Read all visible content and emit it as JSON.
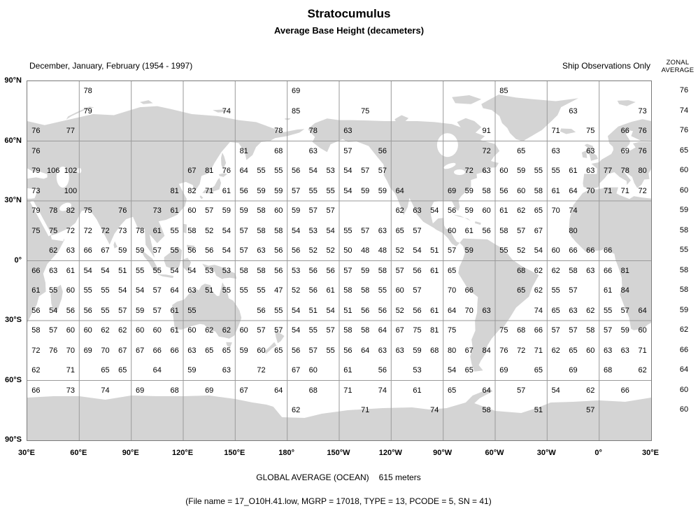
{
  "title": "Stratocumulus",
  "subtitle": "Average Base Height (decameters)",
  "header": {
    "season": "December, January, February (1954 - 1997)",
    "obs": "Ship Observations Only",
    "zonal_line1": "ZONAL",
    "zonal_line2": "AVERAGE"
  },
  "footer": {
    "global_label": "GLOBAL AVERAGE (OCEAN)",
    "global_value": "615 meters",
    "file_info": "(File name = 17_O10H.41.low, MGRP = 17018, TYPE = 13, PCODE = 5, SN = 41)"
  },
  "chart_data": {
    "type": "heatmap",
    "projection": "equirectangular",
    "title": "Stratocumulus",
    "subtitle": "Average Base Height (decameters)",
    "units": "decameters",
    "lon_start_deg_east": 30,
    "cell_size_deg": 10,
    "lat_labels": [
      "90°N",
      "60°N",
      "30°N",
      "0°",
      "30°S",
      "60°S",
      "90°S"
    ],
    "lon_labels": [
      "30°E",
      "60°E",
      "90°E",
      "120°E",
      "150°E",
      "180°",
      "150°W",
      "120°W",
      "90°W",
      "60°W",
      "30°W",
      "0°",
      "30°E"
    ],
    "rows": [
      {
        "lat_band": "90N-80N",
        "zonal_average": 76,
        "cells": {
          "3": 78,
          "15": 69,
          "27": 85
        }
      },
      {
        "lat_band": "80N-70N",
        "zonal_average": 74,
        "cells": {
          "3": 79,
          "11": 74,
          "15": 85,
          "19": 75,
          "31": 63,
          "35": 73
        }
      },
      {
        "lat_band": "70N-60N",
        "zonal_average": 76,
        "cells": {
          "0": 76,
          "2": 77,
          "14": 78,
          "16": 78,
          "18": 63,
          "26": 91,
          "30": 71,
          "32": 75,
          "34": 66,
          "35": 76
        }
      },
      {
        "lat_band": "60N-50N",
        "zonal_average": 65,
        "cells": {
          "0": 76,
          "12": 81,
          "14": 68,
          "16": 63,
          "18": 57,
          "20": 56,
          "26": 72,
          "28": 65,
          "30": 63,
          "32": 63,
          "34": 69,
          "35": 76
        }
      },
      {
        "lat_band": "50N-40N",
        "zonal_average": 60,
        "cells": {
          "0": 79,
          "1": 106,
          "2": 102,
          "9": 67,
          "10": 81,
          "11": 76,
          "12": 64,
          "13": 55,
          "14": 55,
          "15": 56,
          "16": 54,
          "17": 53,
          "18": 54,
          "19": 57,
          "20": 57,
          "25": 72,
          "26": 63,
          "27": 60,
          "28": 59,
          "29": 55,
          "30": 55,
          "31": 61,
          "32": 63,
          "33": 77,
          "34": 78,
          "35": 80
        }
      },
      {
        "lat_band": "40N-30N",
        "zonal_average": 60,
        "cells": {
          "0": 73,
          "2": 100,
          "8": 81,
          "9": 82,
          "10": 71,
          "11": 61,
          "12": 56,
          "13": 59,
          "14": 59,
          "15": 57,
          "16": 55,
          "17": 55,
          "18": 54,
          "19": 59,
          "20": 59,
          "21": 64,
          "24": 69,
          "25": 59,
          "26": 58,
          "27": 56,
          "28": 60,
          "29": 58,
          "30": 61,
          "31": 64,
          "32": 70,
          "33": 71,
          "34": 71,
          "35": 72
        }
      },
      {
        "lat_band": "30N-20N",
        "zonal_average": 59,
        "cells": {
          "0": 79,
          "1": 78,
          "2": 82,
          "3": 75,
          "5": 76,
          "7": 73,
          "8": 61,
          "9": 60,
          "10": 57,
          "11": 59,
          "12": 59,
          "13": 58,
          "14": 60,
          "15": 59,
          "16": 57,
          "17": 57,
          "21": 62,
          "22": 63,
          "23": 54,
          "24": 56,
          "25": 59,
          "26": 60,
          "27": 61,
          "28": 62,
          "29": 65,
          "30": 70,
          "31": 74
        }
      },
      {
        "lat_band": "20N-10N",
        "zonal_average": 58,
        "cells": {
          "0": 75,
          "1": 75,
          "2": 72,
          "3": 72,
          "4": 72,
          "5": 73,
          "6": 78,
          "7": 61,
          "8": 55,
          "9": 58,
          "10": 52,
          "11": 54,
          "12": 57,
          "13": 58,
          "14": 58,
          "15": 54,
          "16": 53,
          "17": 54,
          "18": 55,
          "19": 57,
          "20": 63,
          "21": 65,
          "22": 57,
          "24": 60,
          "25": 61,
          "26": 56,
          "27": 58,
          "28": 57,
          "29": 67,
          "31": 80
        }
      },
      {
        "lat_band": "10N-0",
        "zonal_average": 55,
        "cells": {
          "1": 62,
          "2": 63,
          "3": 66,
          "4": 67,
          "5": 59,
          "6": 59,
          "7": 57,
          "8": 55,
          "9": 56,
          "10": 56,
          "11": 54,
          "12": 57,
          "13": 63,
          "14": 56,
          "15": 56,
          "16": 52,
          "17": 52,
          "18": 50,
          "19": 48,
          "20": 48,
          "21": 52,
          "22": 54,
          "23": 51,
          "24": 57,
          "25": 59,
          "27": 55,
          "28": 52,
          "29": 54,
          "30": 60,
          "31": 66,
          "32": 66,
          "33": 66
        }
      },
      {
        "lat_band": "0-10S",
        "zonal_average": 58,
        "cells": {
          "0": 66,
          "1": 63,
          "2": 61,
          "3": 54,
          "4": 54,
          "5": 51,
          "6": 55,
          "7": 55,
          "8": 54,
          "9": 54,
          "10": 53,
          "11": 53,
          "12": 58,
          "13": 58,
          "14": 56,
          "15": 53,
          "16": 56,
          "17": 56,
          "18": 57,
          "19": 59,
          "20": 58,
          "21": 57,
          "22": 56,
          "23": 61,
          "24": 65,
          "28": 68,
          "29": 62,
          "30": 62,
          "31": 58,
          "32": 63,
          "33": 66,
          "34": 81
        }
      },
      {
        "lat_band": "10S-20S",
        "zonal_average": 58,
        "cells": {
          "0": 61,
          "1": 55,
          "2": 60,
          "3": 55,
          "4": 55,
          "5": 54,
          "6": 54,
          "7": 57,
          "8": 64,
          "9": 63,
          "10": 51,
          "11": 55,
          "12": 55,
          "13": 55,
          "14": 47,
          "15": 52,
          "16": 56,
          "17": 61,
          "18": 58,
          "19": 58,
          "20": 55,
          "21": 60,
          "22": 57,
          "24": 70,
          "25": 66,
          "28": 65,
          "29": 62,
          "30": 55,
          "31": 57,
          "33": 61,
          "34": 84
        }
      },
      {
        "lat_band": "20S-30S",
        "zonal_average": 59,
        "cells": {
          "0": 56,
          "1": 54,
          "2": 56,
          "3": 56,
          "4": 55,
          "5": 57,
          "6": 59,
          "7": 57,
          "8": 61,
          "9": 55,
          "13": 56,
          "14": 55,
          "15": 54,
          "16": 51,
          "17": 54,
          "18": 51,
          "19": 56,
          "20": 56,
          "21": 52,
          "22": 56,
          "23": 61,
          "24": 64,
          "25": 70,
          "26": 63,
          "29": 74,
          "30": 65,
          "31": 63,
          "32": 62,
          "33": 55,
          "34": 57,
          "35": 64
        }
      },
      {
        "lat_band": "30S-40S",
        "zonal_average": 62,
        "cells": {
          "0": 58,
          "1": 57,
          "2": 60,
          "3": 60,
          "4": 62,
          "5": 62,
          "6": 60,
          "7": 60,
          "8": 61,
          "9": 60,
          "10": 62,
          "11": 62,
          "12": 60,
          "13": 57,
          "14": 57,
          "15": 54,
          "16": 55,
          "17": 57,
          "18": 58,
          "19": 58,
          "20": 64,
          "21": 67,
          "22": 75,
          "23": 81,
          "24": 75,
          "27": 75,
          "28": 68,
          "29": 66,
          "30": 57,
          "31": 57,
          "32": 58,
          "33": 57,
          "34": 59,
          "35": 60
        }
      },
      {
        "lat_band": "40S-50S",
        "zonal_average": 66,
        "cells": {
          "0": 72,
          "1": 76,
          "2": 70,
          "3": 69,
          "4": 70,
          "5": 67,
          "6": 67,
          "7": 66,
          "8": 66,
          "9": 63,
          "10": 65,
          "11": 65,
          "12": 59,
          "13": 60,
          "14": 65,
          "15": 56,
          "16": 57,
          "17": 55,
          "18": 56,
          "19": 64,
          "20": 63,
          "21": 63,
          "22": 59,
          "23": 68,
          "24": 80,
          "25": 67,
          "26": 84,
          "27": 76,
          "28": 72,
          "29": 71,
          "30": 62,
          "31": 65,
          "32": 60,
          "33": 63,
          "34": 63,
          "35": 71
        }
      },
      {
        "lat_band": "50S-60S",
        "zonal_average": 64,
        "cells": {
          "0": 62,
          "2": 71,
          "4": 65,
          "5": 65,
          "7": 64,
          "9": 59,
          "11": 63,
          "13": 72,
          "15": 67,
          "16": 60,
          "18": 61,
          "20": 56,
          "22": 53,
          "24": 54,
          "25": 65,
          "27": 69,
          "29": 65,
          "31": 69,
          "33": 68,
          "35": 62
        }
      },
      {
        "lat_band": "60S-70S",
        "zonal_average": 60,
        "cells": {
          "0": 66,
          "2": 73,
          "4": 74,
          "6": 69,
          "8": 68,
          "10": 69,
          "12": 67,
          "14": 64,
          "16": 68,
          "18": 71,
          "20": 74,
          "22": 61,
          "24": 65,
          "26": 64,
          "28": 57,
          "30": 54,
          "32": 62,
          "34": 66
        }
      },
      {
        "lat_band": "70S-80S",
        "zonal_average": 60,
        "cells": {
          "15": 62,
          "19": 71,
          "23": 74,
          "26": 58,
          "29": 51,
          "32": 57
        }
      },
      {
        "lat_band": "80S-90S",
        "zonal_average": null,
        "cells": {}
      }
    ]
  }
}
